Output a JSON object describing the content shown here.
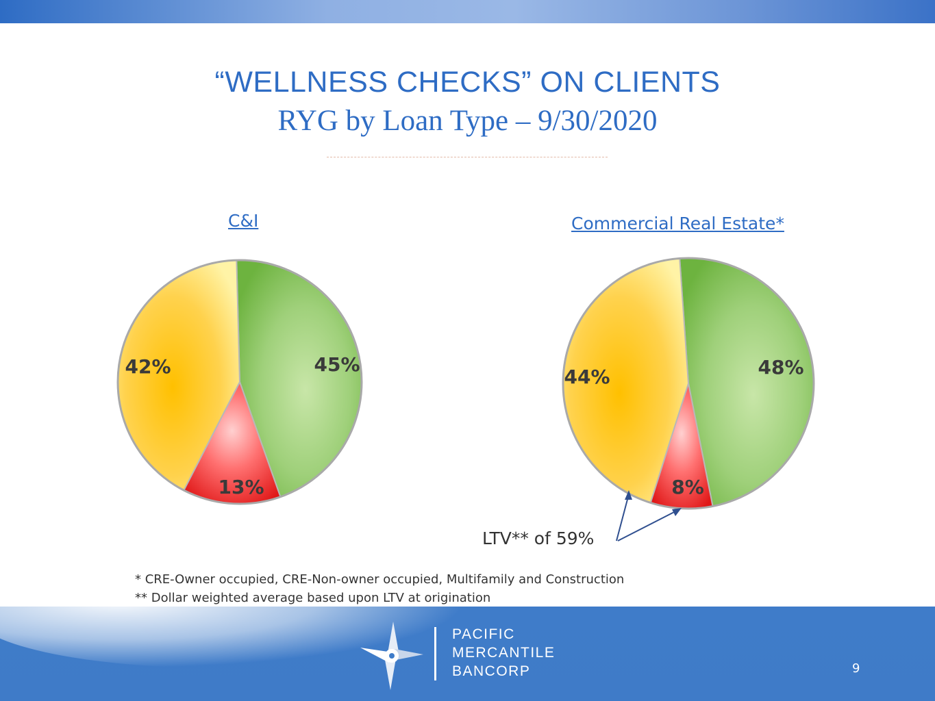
{
  "title": {
    "line1": "“WELLNESS CHECKS” ON CLIENTS",
    "line2": "RYG by Loan Type – 9/30/2020"
  },
  "colors": {
    "green": "#8cc26a",
    "yellow": "#ffc61a",
    "red": "#f04848",
    "accent": "#2e6cc4"
  },
  "chart_data": [
    {
      "type": "pie",
      "title": "C&I",
      "slices": [
        {
          "label": "45%",
          "value": 45,
          "color": "green"
        },
        {
          "label": "13%",
          "value": 13,
          "color": "red"
        },
        {
          "label": "42%",
          "value": 42,
          "color": "yellow"
        }
      ]
    },
    {
      "type": "pie",
      "title": "Commercial Real Estate*",
      "slices": [
        {
          "label": "48%",
          "value": 48,
          "color": "green"
        },
        {
          "label": "8%",
          "value": 8,
          "color": "red"
        },
        {
          "label": "44%",
          "value": 44,
          "color": "yellow"
        }
      ]
    }
  ],
  "annotation": "LTV** of 59%",
  "footnotes": [
    "*   CRE-Owner occupied, CRE-Non-owner occupied, Multifamily and Construction",
    "** Dollar weighted average based upon LTV at origination"
  ],
  "brand": {
    "line1": "PACIFIC",
    "line2": "MERCANTILE",
    "line3": "BANCORP"
  },
  "page_number": "9"
}
